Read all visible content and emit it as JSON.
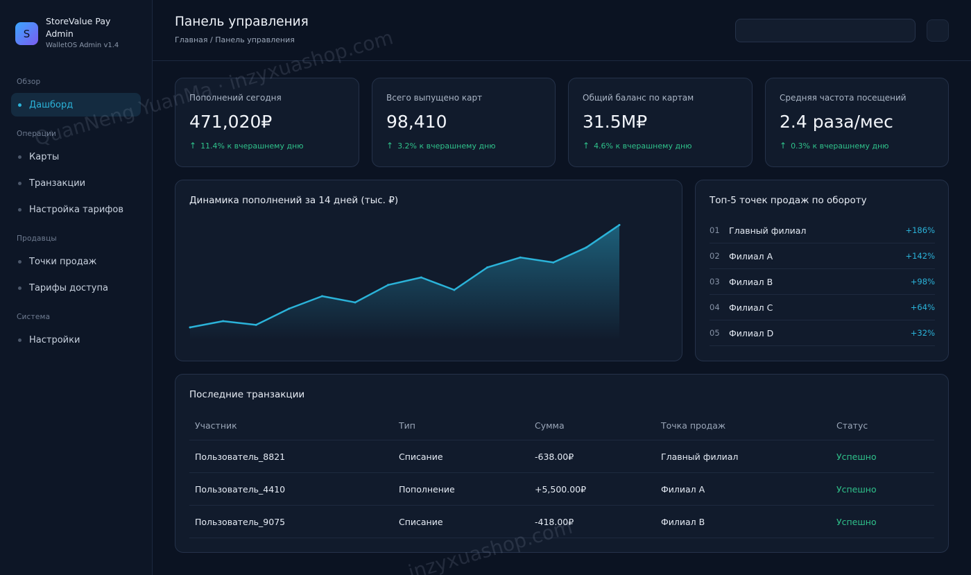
{
  "brand": {
    "logo_letter": "S",
    "name": "StoreValue Pay Admin",
    "version": "WalletOS Admin v1.4"
  },
  "nav": {
    "sections": [
      {
        "label": "Обзор",
        "items": [
          {
            "label": "Дашборд",
            "active": true
          }
        ]
      },
      {
        "label": "Операции",
        "items": [
          {
            "label": "Карты"
          },
          {
            "label": "Транзакции"
          },
          {
            "label": "Настройка тарифов"
          }
        ]
      },
      {
        "label": "Продавцы",
        "items": [
          {
            "label": "Точки продаж"
          },
          {
            "label": "Тарифы доступа"
          }
        ]
      },
      {
        "label": "Система",
        "items": [
          {
            "label": "Настройки"
          }
        ]
      }
    ]
  },
  "header": {
    "title": "Панель управления",
    "breadcrumb": "Главная / Панель управления"
  },
  "kpis": [
    {
      "label": "Пополнений сегодня",
      "value": "471,020₽",
      "delta_arrow": "↑",
      "delta": "11.4% к вчерашнему дню"
    },
    {
      "label": "Всего выпущено карт",
      "value": "98,410",
      "delta_arrow": "↑",
      "delta": "3.2% к вчерашнему дню"
    },
    {
      "label": "Общий баланс по картам",
      "value": "31.5M₽",
      "delta_arrow": "↑",
      "delta": "4.6% к вчерашнему дню"
    },
    {
      "label": "Средняя частота посещений",
      "value": "2.4 раза/мес",
      "delta_arrow": "↑",
      "delta": "0.3% к вчерашнему дню"
    }
  ],
  "chart_data": {
    "type": "area",
    "title": "Динамика пополнений за 14 дней (тыс. ₽)",
    "xlabel": "",
    "ylabel": "",
    "x": [
      1,
      2,
      3,
      4,
      5,
      6,
      7,
      8,
      9,
      10,
      11,
      12,
      13,
      14
    ],
    "series": [
      {
        "values": [
          10,
          15,
          12,
          25,
          35,
          30,
          44,
          50,
          40,
          58,
          66,
          62,
          74,
          92
        ]
      }
    ],
    "ylim": [
      0,
      100
    ],
    "grid": false,
    "line_color": "#2bb3d9"
  },
  "top_points": {
    "title": "Топ-5 точек продаж по обороту",
    "rows": [
      {
        "rank": "01",
        "name": "Главный филиал",
        "value": "+186%"
      },
      {
        "rank": "02",
        "name": "Филиал A",
        "value": "+142%"
      },
      {
        "rank": "03",
        "name": "Филиал B",
        "value": "+98%"
      },
      {
        "rank": "04",
        "name": "Филиал C",
        "value": "+64%"
      },
      {
        "rank": "05",
        "name": "Филиал D",
        "value": "+32%"
      }
    ]
  },
  "transactions": {
    "title": "Последние транзакции",
    "columns": [
      "Участник",
      "Тип",
      "Сумма",
      "Точка продаж",
      "Статус"
    ],
    "rows": [
      {
        "user": "Пользователь_8821",
        "type": "Списание",
        "amount": "-638.00₽",
        "point": "Главный филиал",
        "status": "Успешно"
      },
      {
        "user": "Пользователь_4410",
        "type": "Пополнение",
        "amount": "+5,500.00₽",
        "point": "Филиал A",
        "status": "Успешно"
      },
      {
        "user": "Пользователь_9075",
        "type": "Списание",
        "amount": "-418.00₽",
        "point": "Филиал B",
        "status": "Успешно"
      }
    ]
  },
  "watermarks": [
    "QuanNeng YuanMa · inzyxuashop.com",
    "inzyxuashop.com"
  ],
  "colors": {
    "accent": "#2bb3d9",
    "positive": "#2fc28b",
    "background": "#0b1322",
    "card": "#111b2c"
  }
}
